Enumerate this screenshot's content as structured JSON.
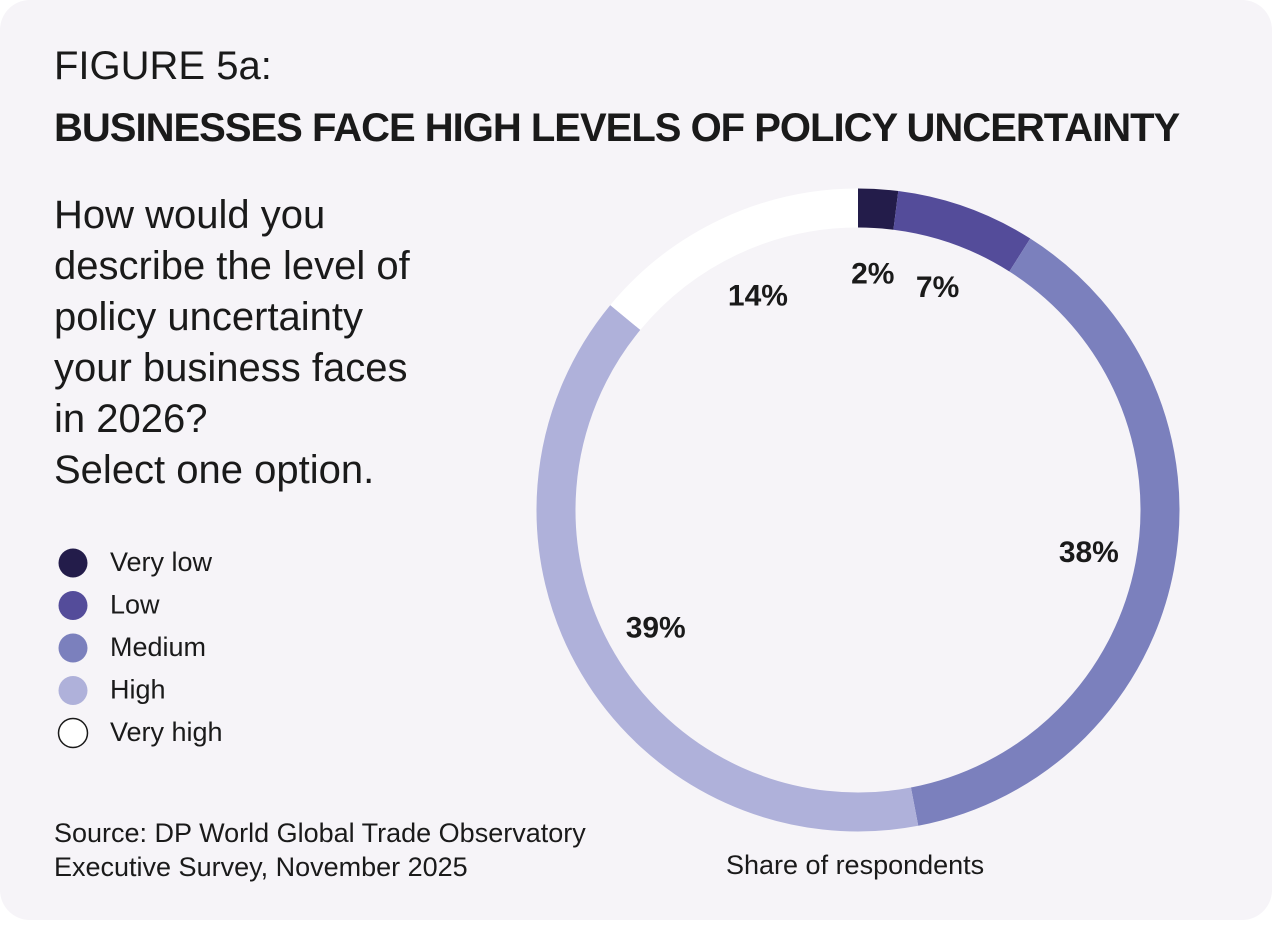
{
  "figure_label": "FIGURE 5a:",
  "chart_data": {
    "type": "donut",
    "title": "BUSINESSES FACE HIGH LEVELS OF POLICY UNCERTAINTY",
    "question": "How would you describe the level of policy uncertainty your business faces in 2026?",
    "instruction": "Select one option.",
    "categories": [
      "Very low",
      "Low",
      "Medium",
      "High",
      "Very high"
    ],
    "values": [
      2,
      7,
      38,
      39,
      14
    ],
    "value_labels": [
      "2%",
      "7%",
      "38%",
      "39%",
      "14%"
    ],
    "colors": [
      "#231c4a",
      "#544c9a",
      "#7b80bd",
      "#afb1da",
      "#ffffff"
    ],
    "caption": "Share of respondents",
    "source": "Source: DP World Global Trade Observatory Executive Survey, November 2025"
  }
}
